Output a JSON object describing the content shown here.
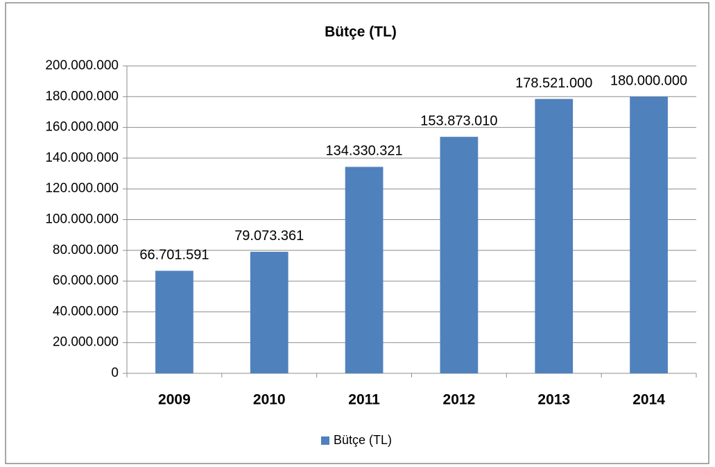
{
  "chart_data": {
    "type": "bar",
    "title": "Bütçe (TL)",
    "categories": [
      "2009",
      "2010",
      "2011",
      "2012",
      "2013",
      "2014"
    ],
    "series": [
      {
        "name": "Bütçe (TL)",
        "color": "#4f81bd",
        "values": [
          66701591,
          79073361,
          134330321,
          153873010,
          178521000,
          180000000
        ],
        "value_labels": [
          "66.701.591",
          "79.073.361",
          "134.330.321",
          "153.873.010",
          "178.521.000",
          "180.000.000"
        ]
      }
    ],
    "ylim": [
      0,
      200000000
    ],
    "yticks": [
      0,
      {
        "value": 20000000,
        "label": "20.000.000"
      },
      {
        "value": 40000000,
        "label": "40.000.000"
      },
      {
        "value": 60000000,
        "label": "60.000.000"
      },
      {
        "value": 80000000,
        "label": "80.000.000"
      },
      {
        "value": 100000000,
        "label": "100.000.000"
      },
      {
        "value": 120000000,
        "label": "120.000.000"
      },
      {
        "value": 140000000,
        "label": "140.000.000"
      },
      {
        "value": 160000000,
        "label": "160.000.000"
      },
      {
        "value": 180000000,
        "label": "180.000.000"
      },
      {
        "value": 200000000,
        "label": "200.000.000"
      }
    ],
    "grid": true,
    "legend": "bottom"
  }
}
